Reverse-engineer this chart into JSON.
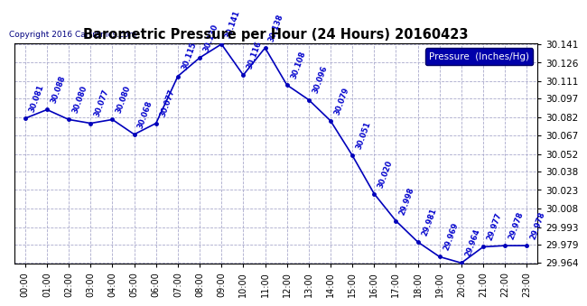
{
  "title": "Barometric Pressure per Hour (24 Hours) 20160423",
  "copyright": "Copyright 2016 Cartronics.com",
  "legend_label": "Pressure  (Inches/Hg)",
  "hours": [
    0,
    1,
    2,
    3,
    4,
    5,
    6,
    7,
    8,
    9,
    10,
    11,
    12,
    13,
    14,
    15,
    16,
    17,
    18,
    19,
    20,
    21,
    22,
    23
  ],
  "hour_labels": [
    "00:00",
    "01:00",
    "02:00",
    "03:00",
    "04:00",
    "05:00",
    "06:00",
    "07:00",
    "08:00",
    "09:00",
    "10:00",
    "11:00",
    "12:00",
    "13:00",
    "14:00",
    "15:00",
    "16:00",
    "17:00",
    "18:00",
    "19:00",
    "20:00",
    "21:00",
    "22:00",
    "23:00"
  ],
  "values": [
    30.081,
    30.088,
    30.08,
    30.077,
    30.08,
    30.068,
    30.077,
    30.115,
    30.13,
    30.141,
    30.116,
    30.138,
    30.108,
    30.096,
    30.079,
    30.051,
    30.02,
    29.998,
    29.981,
    29.969,
    29.964,
    29.977,
    29.978,
    29.978
  ],
  "yticks": [
    29.964,
    29.979,
    29.993,
    30.008,
    30.023,
    30.038,
    30.052,
    30.067,
    30.082,
    30.097,
    30.111,
    30.126,
    30.141
  ],
  "line_color": "#0000bb",
  "marker_color": "#0000bb",
  "bg_color": "#ffffff",
  "grid_color": "#aaaacc",
  "title_color": "#000000",
  "label_color": "#0000cc",
  "legend_bg": "#0000aa",
  "legend_text_color": "#ffffff",
  "label_fontsize": 6.0,
  "label_rotation": 70
}
